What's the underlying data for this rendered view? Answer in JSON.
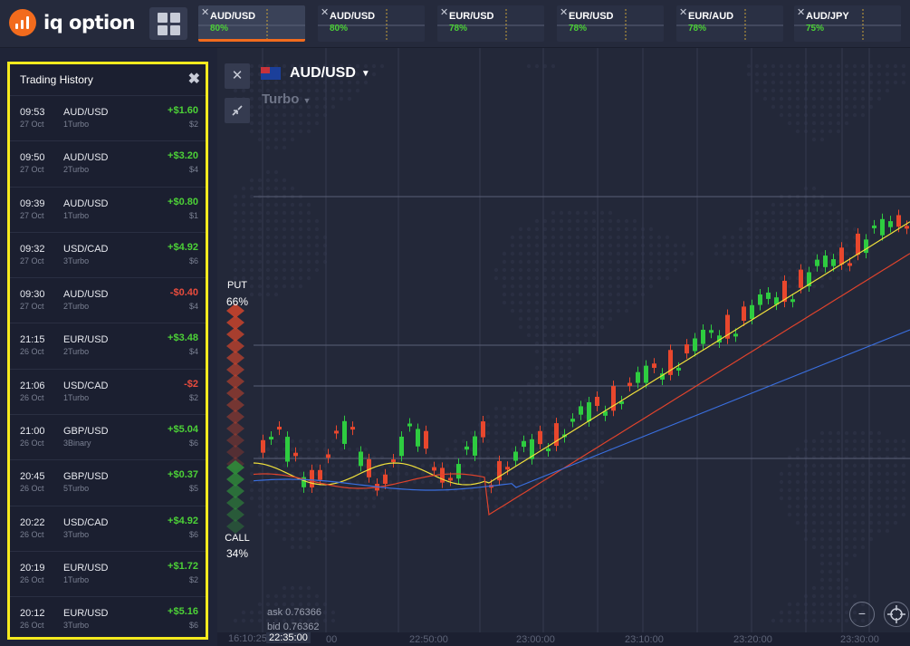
{
  "brand": {
    "name": "iq option",
    "color": "#f26b1d"
  },
  "top_tabs": [
    {
      "pair": "AUD/USD",
      "percent": "80%",
      "active": true
    },
    {
      "pair": "AUD/USD",
      "percent": "80%",
      "active": false
    },
    {
      "pair": "EUR/USD",
      "percent": "78%",
      "active": false
    },
    {
      "pair": "EUR/USD",
      "percent": "78%",
      "active": false
    },
    {
      "pair": "EUR/AUD",
      "percent": "78%",
      "active": false
    },
    {
      "pair": "AUD/JPY",
      "percent": "75%",
      "active": false
    }
  ],
  "history": {
    "title": "Trading History",
    "rows": [
      {
        "time": "09:53",
        "date": "27 Oct",
        "pair": "AUD/USD",
        "kind": "1Turbo",
        "profit": "+$1.60",
        "stake": "$2",
        "positive": true
      },
      {
        "time": "09:50",
        "date": "27 Oct",
        "pair": "AUD/USD",
        "kind": "2Turbo",
        "profit": "+$3.20",
        "stake": "$4",
        "positive": true
      },
      {
        "time": "09:39",
        "date": "27 Oct",
        "pair": "AUD/USD",
        "kind": "1Turbo",
        "profit": "+$0.80",
        "stake": "$1",
        "positive": true
      },
      {
        "time": "09:32",
        "date": "27 Oct",
        "pair": "USD/CAD",
        "kind": "3Turbo",
        "profit": "+$4.92",
        "stake": "$6",
        "positive": true
      },
      {
        "time": "09:30",
        "date": "27 Oct",
        "pair": "AUD/USD",
        "kind": "2Turbo",
        "profit": "-$0.40",
        "stake": "$4",
        "positive": false
      },
      {
        "time": "21:15",
        "date": "26 Oct",
        "pair": "EUR/USD",
        "kind": "2Turbo",
        "profit": "+$3.48",
        "stake": "$4",
        "positive": true
      },
      {
        "time": "21:06",
        "date": "26 Oct",
        "pair": "USD/CAD",
        "kind": "1Turbo",
        "profit": "-$2",
        "stake": "$2",
        "positive": false
      },
      {
        "time": "21:00",
        "date": "26 Oct",
        "pair": "GBP/USD",
        "kind": "3Binary",
        "profit": "+$5.04",
        "stake": "$6",
        "positive": true
      },
      {
        "time": "20:45",
        "date": "26 Oct",
        "pair": "GBP/USD",
        "kind": "5Turbo",
        "profit": "+$0.37",
        "stake": "$5",
        "positive": true
      },
      {
        "time": "20:22",
        "date": "26 Oct",
        "pair": "USD/CAD",
        "kind": "3Turbo",
        "profit": "+$4.92",
        "stake": "$6",
        "positive": true
      },
      {
        "time": "20:19",
        "date": "26 Oct",
        "pair": "EUR/USD",
        "kind": "1Turbo",
        "profit": "+$1.72",
        "stake": "$2",
        "positive": true
      },
      {
        "time": "20:12",
        "date": "26 Oct",
        "pair": "EUR/USD",
        "kind": "3Turbo",
        "profit": "+$5.16",
        "stake": "$6",
        "positive": true
      }
    ]
  },
  "chart": {
    "pair": "AUD/USD",
    "mode": "Turbo",
    "put_label": "PUT",
    "put_percent": "66%",
    "call_label": "CALL",
    "call_percent": "34%",
    "ask": "ask 0.76366",
    "bid": "bid 0.76362",
    "current_time": "22:35:00",
    "time_prefix": "16:10:25",
    "time_ticks": [
      "00",
      "22:50:00",
      "23:00:00",
      "23:10:00",
      "23:20:00",
      "23:30:00"
    ],
    "colors": {
      "up": "#2ecc40",
      "down": "#e8472d",
      "ma_fast": "#f1e13b",
      "ma_mid": "#e0432c",
      "ma_slow": "#3a6fe0"
    }
  },
  "icons": {
    "close": "close-icon",
    "collapse": "collapse-icon",
    "zoom_out": "minus-icon",
    "crosshair": "crosshair-icon"
  }
}
